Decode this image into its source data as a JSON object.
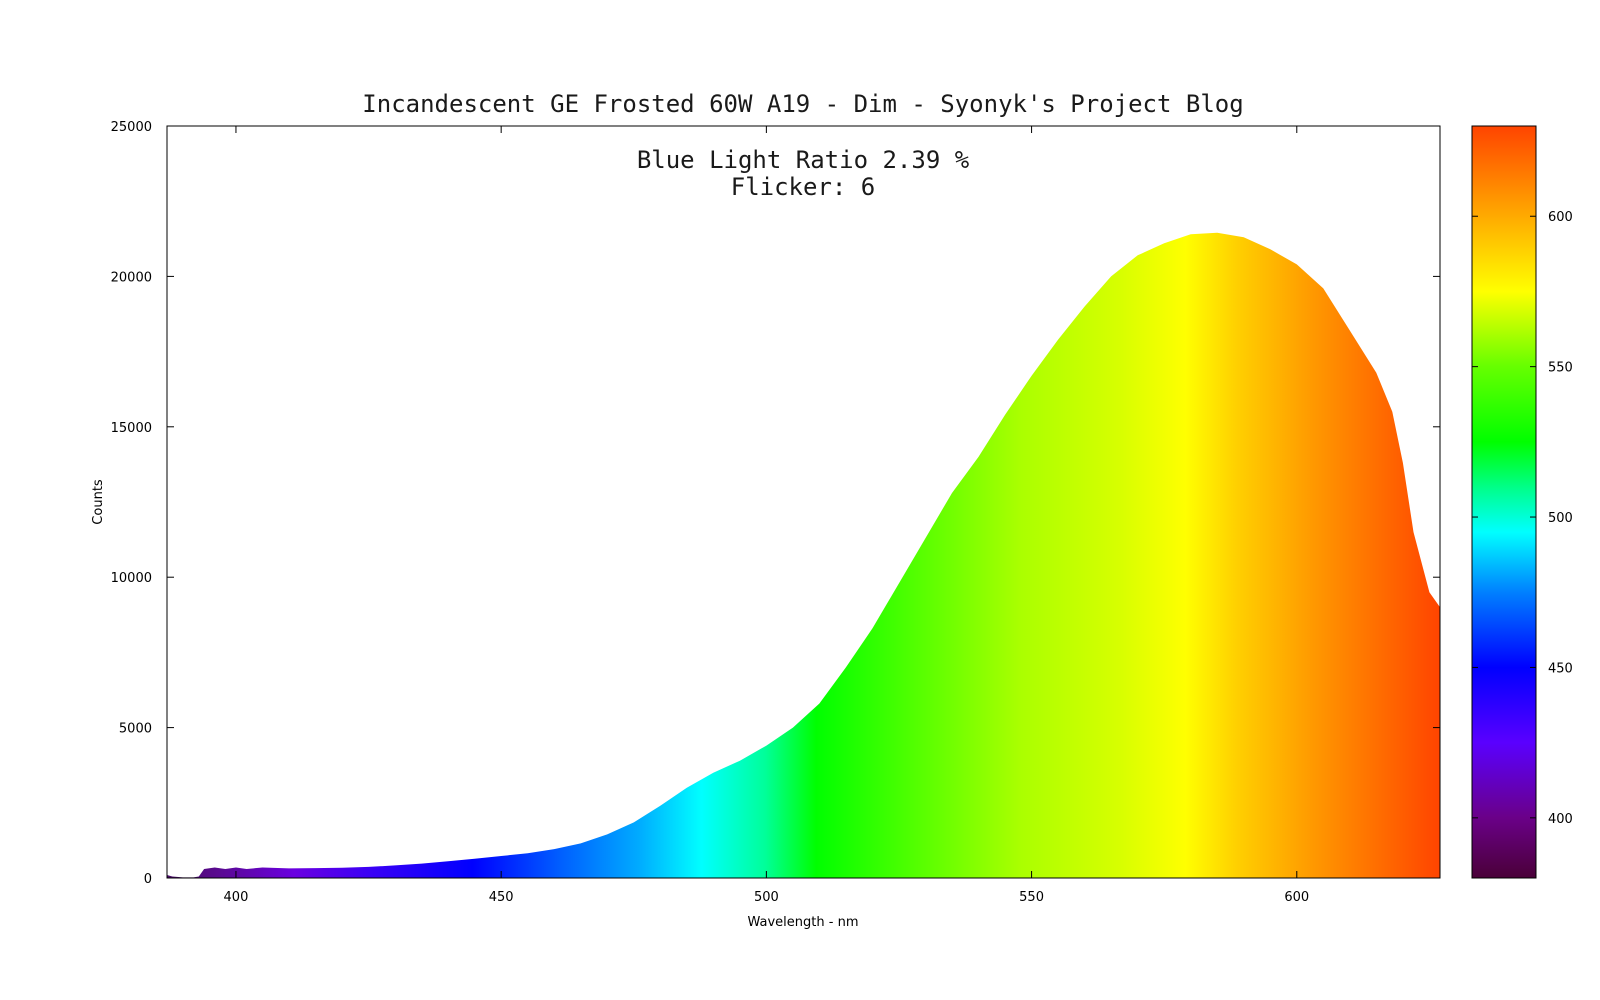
{
  "chart_data": {
    "type": "area",
    "title": "Incandescent GE Frosted 60W A19 - Dim - Syonyk's Project Blog",
    "annotations": [
      "Blue Light Ratio 2.39 %",
      "Flicker: 6"
    ],
    "xlabel": "Wavelength - nm",
    "ylabel": "Counts",
    "xlim": [
      387,
      627
    ],
    "ylim": [
      0,
      25000
    ],
    "x_ticks": [
      400,
      450,
      500,
      550,
      600
    ],
    "y_ticks": [
      0,
      5000,
      10000,
      15000,
      20000,
      25000
    ],
    "colorbar": {
      "range": [
        380,
        630
      ],
      "ticks": [
        400,
        450,
        500,
        550,
        600
      ],
      "colormap": "wavelength spectrum (violet → blue → cyan → green → yellow → orange-red)"
    },
    "grid": false,
    "legend": "none",
    "series": [
      {
        "x": [
          387,
          388,
          390,
          392,
          393,
          394,
          396,
          398,
          400,
          402,
          405,
          410,
          415,
          420,
          425,
          430,
          435,
          440,
          445,
          450,
          455,
          460,
          465,
          470,
          475,
          480,
          485,
          490,
          495,
          500,
          505,
          510,
          515,
          520,
          525,
          530,
          535,
          540,
          545,
          550,
          555,
          560,
          565,
          570,
          575,
          580,
          585,
          590,
          595,
          600,
          605,
          610,
          615,
          618,
          620,
          622,
          625,
          627
        ],
        "y": [
          100,
          50,
          20,
          20,
          50,
          300,
          350,
          300,
          350,
          300,
          350,
          320,
          330,
          340,
          370,
          420,
          480,
          560,
          640,
          730,
          820,
          960,
          1150,
          1450,
          1850,
          2400,
          3000,
          3500,
          3900,
          4400,
          5000,
          5800,
          7000,
          8300,
          9800,
          11300,
          12800,
          14000,
          15400,
          16700,
          17900,
          19000,
          20000,
          20700,
          21100,
          21400,
          21450,
          21300,
          20900,
          20400,
          19600,
          18200,
          16800,
          15500,
          13800,
          11500,
          9500,
          9000
        ]
      }
    ]
  }
}
